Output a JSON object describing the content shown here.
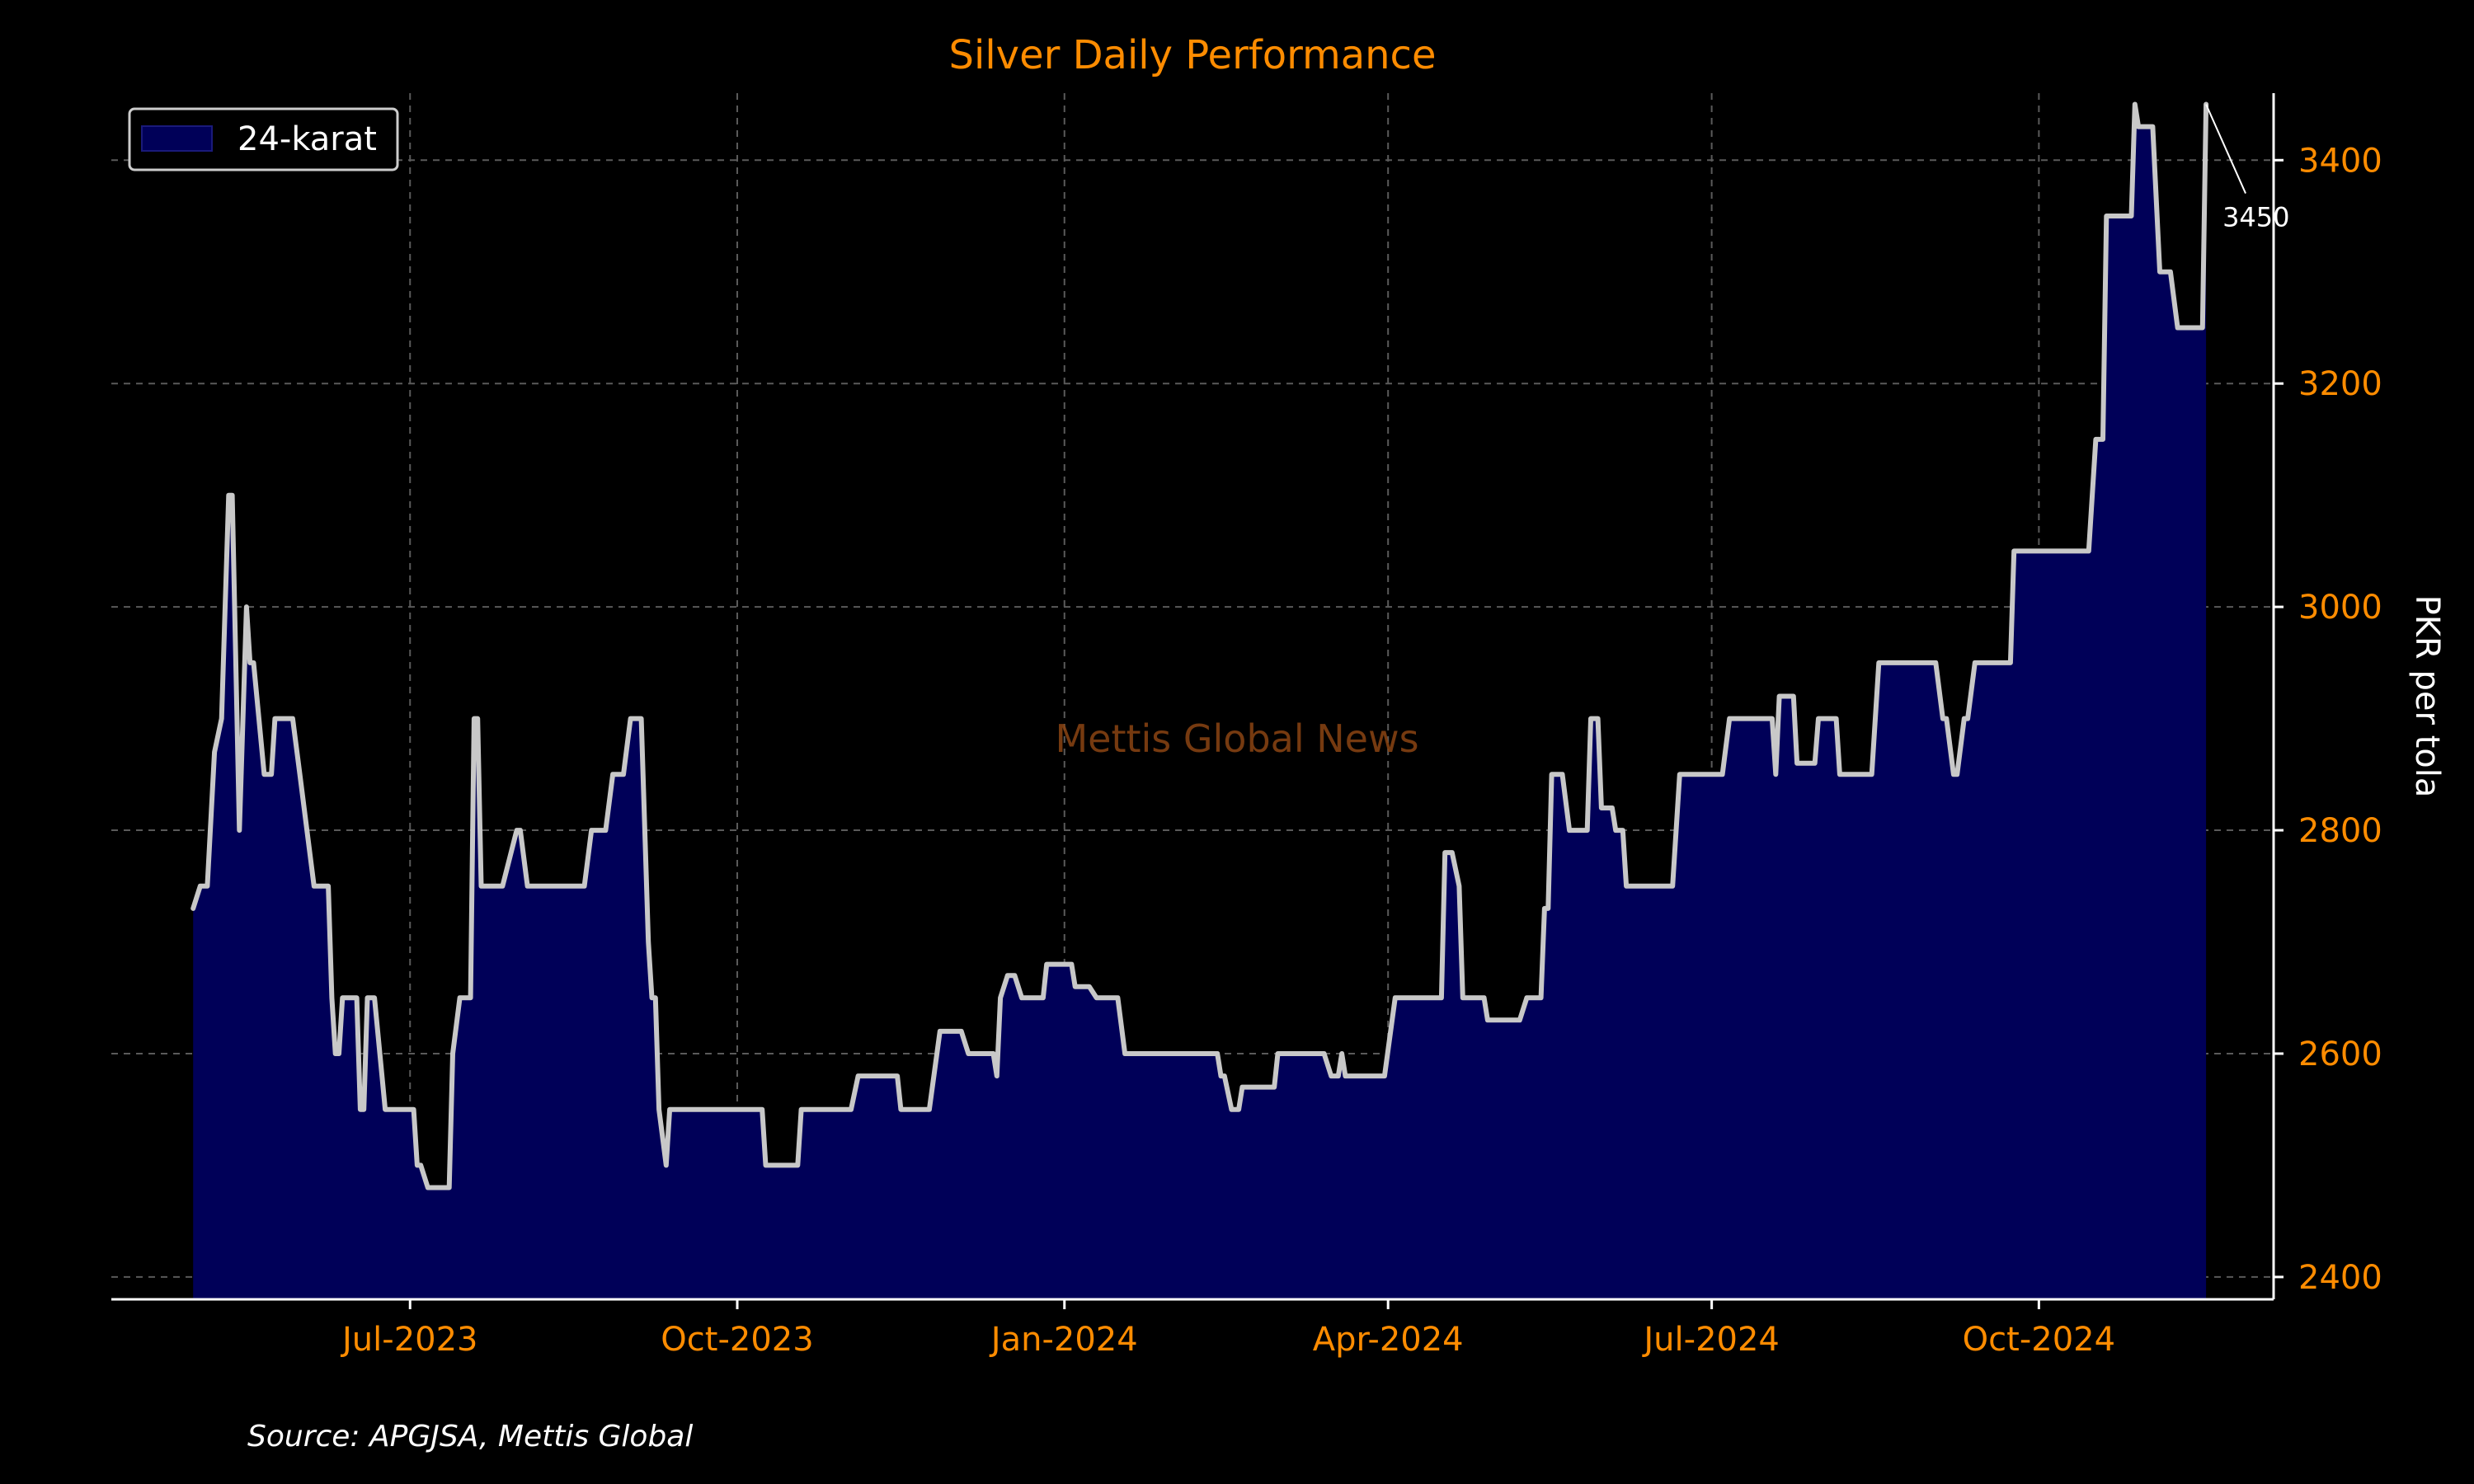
{
  "chart_data": {
    "type": "area",
    "title": "Silver Daily Performance",
    "ylabel": "PKR per tola",
    "xlabel": "",
    "ylim": [
      2380,
      3460
    ],
    "xlim": [
      "2023-04-08",
      "2024-12-06"
    ],
    "x_ticks": [
      "2023-07-01",
      "2023-10-01",
      "2024-01-01",
      "2024-04-01",
      "2024-07-01",
      "2024-10-01"
    ],
    "x_tick_labels": [
      "Jul-2023",
      "Oct-2023",
      "Jan-2024",
      "Apr-2024",
      "Jul-2024",
      "Oct-2024"
    ],
    "y_ticks": [
      2400,
      2600,
      2800,
      3000,
      3200,
      3400
    ],
    "y_axis_position": "right",
    "grid": true,
    "legend_position": "top-left",
    "series": [
      {
        "name": "24-karat",
        "fill_color": "#000058",
        "line_color": "#c8c8c8",
        "points": [
          [
            "2023-05-01",
            2730
          ],
          [
            "2023-05-03",
            2750
          ],
          [
            "2023-05-05",
            2750
          ],
          [
            "2023-05-07",
            2870
          ],
          [
            "2023-05-09",
            2900
          ],
          [
            "2023-05-11",
            3100
          ],
          [
            "2023-05-12",
            3100
          ],
          [
            "2023-05-14",
            2800
          ],
          [
            "2023-05-16",
            3000
          ],
          [
            "2023-05-17",
            2950
          ],
          [
            "2023-05-18",
            2950
          ],
          [
            "2023-05-21",
            2850
          ],
          [
            "2023-05-23",
            2850
          ],
          [
            "2023-05-24",
            2900
          ],
          [
            "2023-05-29",
            2900
          ],
          [
            "2023-05-31",
            2850
          ],
          [
            "2023-06-02",
            2800
          ],
          [
            "2023-06-04",
            2750
          ],
          [
            "2023-06-08",
            2750
          ],
          [
            "2023-06-09",
            2650
          ],
          [
            "2023-06-10",
            2600
          ],
          [
            "2023-06-11",
            2600
          ],
          [
            "2023-06-12",
            2650
          ],
          [
            "2023-06-16",
            2650
          ],
          [
            "2023-06-17",
            2550
          ],
          [
            "2023-06-18",
            2550
          ],
          [
            "2023-06-19",
            2650
          ],
          [
            "2023-06-21",
            2650
          ],
          [
            "2023-06-24",
            2550
          ],
          [
            "2023-07-02",
            2550
          ],
          [
            "2023-07-03",
            2500
          ],
          [
            "2023-07-04",
            2500
          ],
          [
            "2023-07-06",
            2480
          ],
          [
            "2023-07-12",
            2480
          ],
          [
            "2023-07-13",
            2600
          ],
          [
            "2023-07-15",
            2650
          ],
          [
            "2023-07-18",
            2650
          ],
          [
            "2023-07-19",
            2900
          ],
          [
            "2023-07-20",
            2900
          ],
          [
            "2023-07-21",
            2750
          ],
          [
            "2023-07-27",
            2750
          ],
          [
            "2023-07-31",
            2800
          ],
          [
            "2023-08-01",
            2800
          ],
          [
            "2023-08-03",
            2750
          ],
          [
            "2023-08-19",
            2750
          ],
          [
            "2023-08-21",
            2800
          ],
          [
            "2023-08-25",
            2800
          ],
          [
            "2023-08-27",
            2850
          ],
          [
            "2023-08-30",
            2850
          ],
          [
            "2023-09-01",
            2900
          ],
          [
            "2023-09-04",
            2900
          ],
          [
            "2023-09-06",
            2700
          ],
          [
            "2023-09-07",
            2650
          ],
          [
            "2023-09-08",
            2650
          ],
          [
            "2023-09-09",
            2550
          ],
          [
            "2023-09-11",
            2500
          ],
          [
            "2023-09-12",
            2550
          ],
          [
            "2023-10-08",
            2550
          ],
          [
            "2023-10-09",
            2500
          ],
          [
            "2023-10-18",
            2500
          ],
          [
            "2023-10-19",
            2550
          ],
          [
            "2023-11-02",
            2550
          ],
          [
            "2023-11-04",
            2580
          ],
          [
            "2023-11-15",
            2580
          ],
          [
            "2023-11-16",
            2550
          ],
          [
            "2023-11-24",
            2550
          ],
          [
            "2023-11-27",
            2620
          ],
          [
            "2023-12-03",
            2620
          ],
          [
            "2023-12-05",
            2600
          ],
          [
            "2023-12-12",
            2600
          ],
          [
            "2023-12-13",
            2580
          ],
          [
            "2023-12-14",
            2650
          ],
          [
            "2023-12-16",
            2670
          ],
          [
            "2023-12-18",
            2670
          ],
          [
            "2023-12-20",
            2650
          ],
          [
            "2023-12-26",
            2650
          ],
          [
            "2023-12-27",
            2680
          ],
          [
            "2024-01-03",
            2680
          ],
          [
            "2024-01-04",
            2660
          ],
          [
            "2024-01-08",
            2660
          ],
          [
            "2024-01-10",
            2650
          ],
          [
            "2024-01-16",
            2650
          ],
          [
            "2024-01-18",
            2600
          ],
          [
            "2024-02-13",
            2600
          ],
          [
            "2024-02-14",
            2580
          ],
          [
            "2024-02-15",
            2580
          ],
          [
            "2024-02-17",
            2550
          ],
          [
            "2024-02-19",
            2550
          ],
          [
            "2024-02-20",
            2570
          ],
          [
            "2024-02-29",
            2570
          ],
          [
            "2024-03-01",
            2600
          ],
          [
            "2024-03-14",
            2600
          ],
          [
            "2024-03-16",
            2580
          ],
          [
            "2024-03-18",
            2580
          ],
          [
            "2024-03-19",
            2600
          ],
          [
            "2024-03-20",
            2580
          ],
          [
            "2024-03-31",
            2580
          ],
          [
            "2024-04-03",
            2650
          ],
          [
            "2024-04-16",
            2650
          ],
          [
            "2024-04-17",
            2780
          ],
          [
            "2024-04-19",
            2780
          ],
          [
            "2024-04-21",
            2750
          ],
          [
            "2024-04-22",
            2650
          ],
          [
            "2024-04-28",
            2650
          ],
          [
            "2024-04-29",
            2630
          ],
          [
            "2024-05-08",
            2630
          ],
          [
            "2024-05-10",
            2650
          ],
          [
            "2024-05-14",
            2650
          ],
          [
            "2024-05-15",
            2730
          ],
          [
            "2024-05-16",
            2730
          ],
          [
            "2024-05-17",
            2850
          ],
          [
            "2024-05-20",
            2850
          ],
          [
            "2024-05-22",
            2800
          ],
          [
            "2024-05-27",
            2800
          ],
          [
            "2024-05-28",
            2900
          ],
          [
            "2024-05-30",
            2900
          ],
          [
            "2024-05-31",
            2820
          ],
          [
            "2024-06-03",
            2820
          ],
          [
            "2024-06-04",
            2800
          ],
          [
            "2024-06-06",
            2800
          ],
          [
            "2024-06-07",
            2750
          ],
          [
            "2024-06-20",
            2750
          ],
          [
            "2024-06-22",
            2850
          ],
          [
            "2024-07-04",
            2850
          ],
          [
            "2024-07-06",
            2900
          ],
          [
            "2024-07-18",
            2900
          ],
          [
            "2024-07-19",
            2850
          ],
          [
            "2024-07-20",
            2920
          ],
          [
            "2024-07-24",
            2920
          ],
          [
            "2024-07-25",
            2860
          ],
          [
            "2024-07-30",
            2860
          ],
          [
            "2024-07-31",
            2900
          ],
          [
            "2024-08-05",
            2900
          ],
          [
            "2024-08-06",
            2850
          ],
          [
            "2024-08-15",
            2850
          ],
          [
            "2024-08-17",
            2950
          ],
          [
            "2024-09-02",
            2950
          ],
          [
            "2024-09-04",
            2900
          ],
          [
            "2024-09-05",
            2900
          ],
          [
            "2024-09-07",
            2850
          ],
          [
            "2024-09-08",
            2850
          ],
          [
            "2024-09-10",
            2900
          ],
          [
            "2024-09-11",
            2900
          ],
          [
            "2024-09-13",
            2950
          ],
          [
            "2024-09-23",
            2950
          ],
          [
            "2024-09-24",
            3050
          ],
          [
            "2024-10-15",
            3050
          ],
          [
            "2024-10-17",
            3150
          ],
          [
            "2024-10-19",
            3150
          ],
          [
            "2024-10-20",
            3350
          ],
          [
            "2024-10-27",
            3350
          ],
          [
            "2024-10-28",
            3450
          ],
          [
            "2024-10-29",
            3430
          ],
          [
            "2024-11-02",
            3430
          ],
          [
            "2024-11-04",
            3300
          ],
          [
            "2024-11-07",
            3300
          ],
          [
            "2024-11-09",
            3250
          ],
          [
            "2024-11-16",
            3250
          ],
          [
            "2024-11-17",
            3450
          ]
        ]
      }
    ],
    "annotations": [
      {
        "text": "3450",
        "x": "2024-11-17",
        "y": 3450
      }
    ],
    "watermark": "Mettis Global News",
    "source": "Source: APGJSA, Mettis Global"
  }
}
